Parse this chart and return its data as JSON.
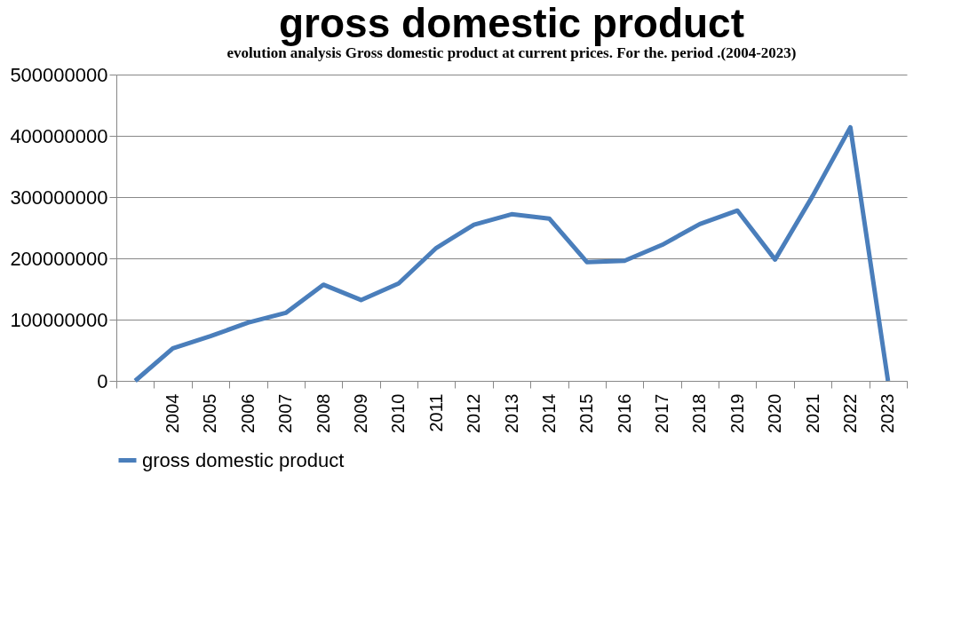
{
  "chart_data": {
    "type": "line",
    "title": "gross domestic product",
    "annotations": [
      "evolution analysis Gross domestic product at current prices. For the. period .(2004-2023)"
    ],
    "categories": [
      null,
      "2004",
      "2005",
      "2006",
      "2007",
      "2008",
      "2009",
      "2010",
      "2011",
      "2012",
      "2013",
      "2014",
      "2015",
      "2016",
      "2017",
      "2018",
      "2019",
      "2020",
      "2021",
      "2022",
      "2023"
    ],
    "series": [
      {
        "name": "gross domestic product",
        "color": "#4a7ebb",
        "values": [
          0,
          53000000,
          73000000,
          95000000,
          111000000,
          157000000,
          132000000,
          159000000,
          217000000,
          255000000,
          272000000,
          265000000,
          194000000,
          196000000,
          222000000,
          256000000,
          278000000,
          198000000,
          302000000,
          414000000,
          0
        ]
      }
    ],
    "ylim": [
      0,
      500000000
    ],
    "yticks": [
      0,
      100000000,
      200000000,
      300000000,
      400000000,
      500000000
    ],
    "grid": "y",
    "legend": "bottom",
    "marker": "none",
    "line_style": "solid"
  }
}
